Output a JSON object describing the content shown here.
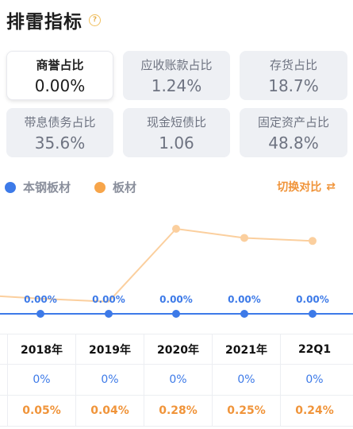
{
  "header": {
    "title": "排雷指标",
    "help_icon": "question-circle-icon"
  },
  "cards": [
    {
      "label": "商誉占比",
      "value": "0.00%",
      "active": true
    },
    {
      "label": "应收账款占比",
      "value": "1.24%"
    },
    {
      "label": "存货占比",
      "value": "18.7%"
    },
    {
      "label": "带息债务占比",
      "value": "35.6%"
    },
    {
      "label": "现金短债比",
      "value": "1.06"
    },
    {
      "label": "固定资产占比",
      "value": "48.8%"
    }
  ],
  "legend": [
    {
      "label": "本钢板材",
      "color": "#3d7ae8"
    },
    {
      "label": "板材",
      "color": "#f7a54a"
    }
  ],
  "switch_label": "切换对比",
  "switch_icon": "switch-icon",
  "chart_data": {
    "type": "line",
    "categories": [
      "2018年",
      "2019年",
      "2020年",
      "2021年",
      "22Q1"
    ],
    "series": [
      {
        "name": "本钢板材",
        "color": "#3d7ae8",
        "values": [
          0,
          0,
          0,
          0,
          0
        ],
        "labels": [
          "0.00%",
          "0.00%",
          "0.00%",
          "0.00%",
          "0.00%"
        ]
      },
      {
        "name": "板材",
        "color": "#fbcf9e",
        "values": [
          0.05,
          0.04,
          0.28,
          0.25,
          0.24
        ]
      }
    ],
    "grid": false
  },
  "table": {
    "headers": [
      "2018年",
      "2019年",
      "2020年",
      "2021年",
      "22Q1"
    ],
    "rows": [
      {
        "color": "blue",
        "cells": [
          "0%",
          "0%",
          "0%",
          "0%",
          "0%"
        ]
      },
      {
        "color": "orange",
        "cells": [
          "0.05%",
          "0.04%",
          "0.28%",
          "0.25%",
          "0.24%"
        ]
      }
    ]
  }
}
